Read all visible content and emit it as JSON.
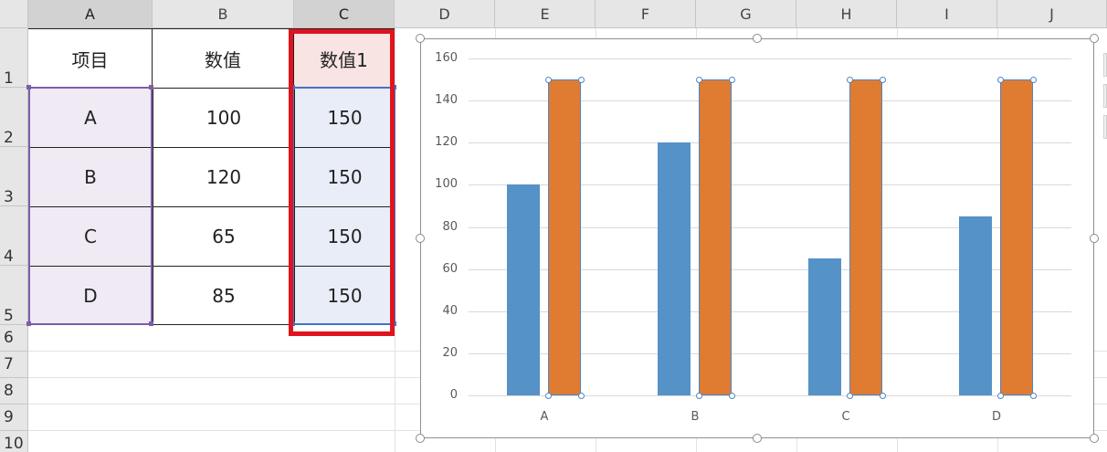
{
  "columns": [
    "A",
    "B",
    "C",
    "D",
    "E",
    "F",
    "G",
    "H",
    "I",
    "J"
  ],
  "rows": [
    "1",
    "2",
    "3",
    "4",
    "5",
    "6",
    "7",
    "8",
    "9",
    "10"
  ],
  "table": {
    "headers": [
      "项目",
      "数值",
      "数值1"
    ],
    "data": [
      [
        "A",
        "100",
        "150"
      ],
      [
        "B",
        "120",
        "150"
      ],
      [
        "C",
        "65",
        "150"
      ],
      [
        "D",
        "85",
        "150"
      ]
    ]
  },
  "colors": {
    "series_blue": "#5592c8",
    "series_orange": "#e07b32",
    "highlight_red": "#e0141e"
  },
  "chart_data": {
    "type": "bar",
    "categories": [
      "A",
      "B",
      "C",
      "D"
    ],
    "series": [
      {
        "values": [
          100,
          120,
          65,
          85
        ]
      },
      {
        "values": [
          150,
          150,
          150,
          150
        ]
      }
    ],
    "ylim": [
      0,
      160
    ],
    "yticks": [
      "0",
      "20",
      "40",
      "60",
      "80",
      "100",
      "120",
      "140",
      "160"
    ],
    "grid": true,
    "legend": "none"
  }
}
